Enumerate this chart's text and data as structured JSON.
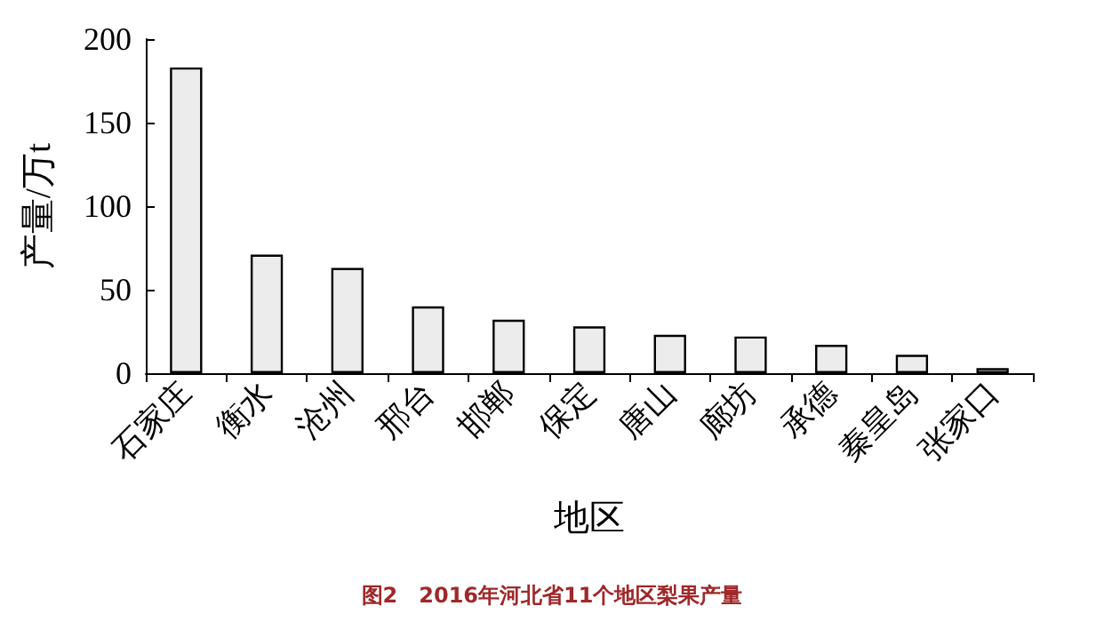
{
  "chart_data": {
    "type": "bar",
    "title": "图2　2016年河北省11个地区梨果产量",
    "xlabel": "地区",
    "ylabel": "产量/万t",
    "categories": [
      "石家庄",
      "衡水",
      "沧州",
      "邢台",
      "邯郸",
      "保定",
      "唐山",
      "廊坊",
      "承德",
      "秦皇岛",
      "张家口"
    ],
    "values": [
      183,
      71,
      63,
      40,
      32,
      28,
      23,
      22,
      17,
      11,
      3
    ],
    "color": "#ececec",
    "ylim": [
      0,
      200
    ],
    "yticks": [
      0,
      50,
      100,
      150,
      200
    ]
  }
}
